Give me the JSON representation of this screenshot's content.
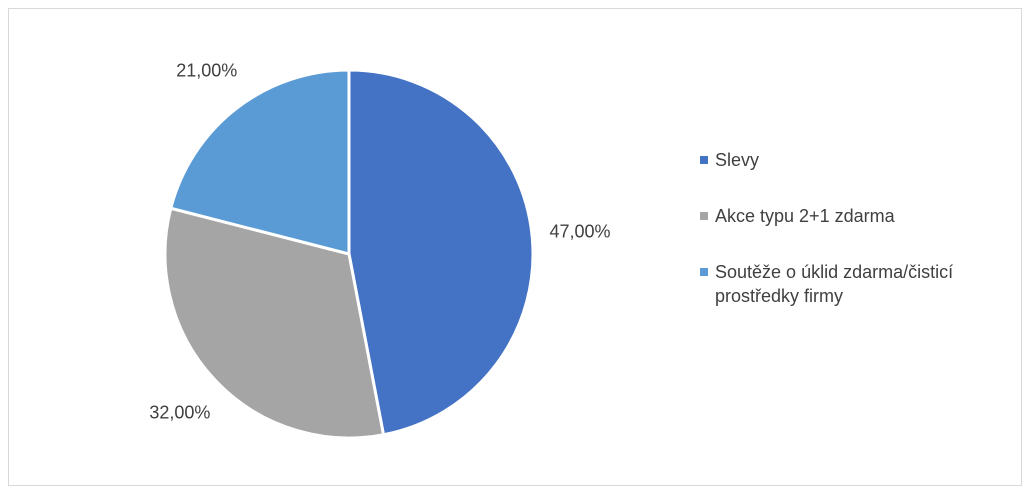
{
  "chart_data": {
    "type": "pie",
    "title": "",
    "slices": [
      {
        "label": "Slevy",
        "value": 47,
        "display": "47,00%",
        "color": "#4472c4"
      },
      {
        "label": "Akce typu 2+1 zdarma",
        "value": 32,
        "display": "32,00%",
        "color": "#a5a5a5"
      },
      {
        "label": "Soutěže o úklid zdarma/čisticí prostředky firmy",
        "value": 21,
        "display": "21,00%",
        "color": "#5b9bd5"
      }
    ],
    "legend_position": "right"
  }
}
